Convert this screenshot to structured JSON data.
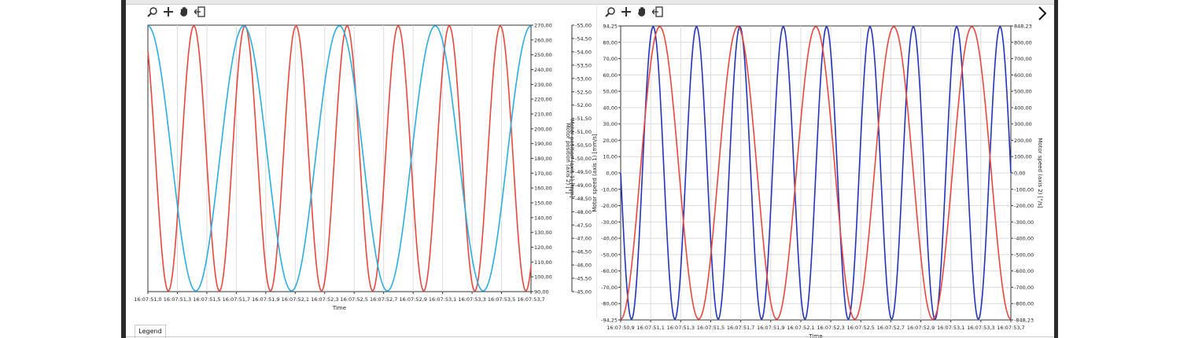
{
  "toolbar": {
    "icons": [
      "zoom-icon",
      "add-icon",
      "pan-hand-icon",
      "exit-icon"
    ]
  },
  "colors": {
    "red": "#e8473e",
    "cyan": "#2aaee0",
    "blue": "#2233bb",
    "grid": "#dcdcdc"
  },
  "legend": {
    "tab_label": "Legend"
  },
  "chart_data": [
    {
      "type": "line",
      "xlabel": "Time",
      "x_ticks": [
        "16:07:51,0",
        "16:07:51,3",
        "16:07:51,5",
        "16:07:51,7",
        "16:07:51,9",
        "16:07:52,1",
        "16:07:52,3",
        "16:07:52,5",
        "16:07:52,7",
        "16:07:52,9",
        "16:07:53,1",
        "16:07:53,3",
        "16:07:53,5",
        "16:07:53,7"
      ],
      "y_axis_right1": {
        "label": "Motor position (axis 2) [°]",
        "ticks": [
          "270,00",
          "260,00",
          "250,00",
          "240,00",
          "230,00",
          "220,00",
          "210,00",
          "200,00",
          "190,00",
          "180,00",
          "170,00",
          "160,00",
          "150,00",
          "140,00",
          "130,00",
          "120,00",
          "110,00",
          "100,00",
          "90,00"
        ],
        "ylim": [
          90,
          270
        ]
      },
      "y_axis_right2": {
        "label": "Motor position (axis 1) [mm]",
        "ticks": [
          "-55,00",
          "-54,50",
          "-54,00",
          "-53,50",
          "-53,00",
          "-52,50",
          "-52,00",
          "-51,50",
          "-51,00",
          "-50,50",
          "-50,00",
          "-49,50",
          "-49,00",
          "-48,50",
          "-48,00",
          "-47,50",
          "-47,00",
          "-46,50",
          "-46,00",
          "-45,50",
          "-45,00"
        ],
        "ylim": [
          -55,
          -45
        ]
      },
      "series": [
        {
          "color": "red",
          "kind": "sine",
          "cycles": 7.5,
          "phase": 0.1
        },
        {
          "color": "cyan",
          "kind": "sine",
          "cycles": 4.0,
          "phase": 0.0
        }
      ]
    },
    {
      "type": "line",
      "xlabel": "Time",
      "x_ticks": [
        "16:07:50,9",
        "16:07:51,1",
        "16:07:51,3",
        "16:07:51,5",
        "16:07:51,7",
        "16:07:51,9",
        "16:07:52,1",
        "16:07:52,3",
        "16:07:52,5",
        "16:07:52,7",
        "16:07:52,9",
        "16:07:53,1",
        "16:07:53,3",
        "16:07:53,7"
      ],
      "y_axis_left": {
        "label": "Motor speed (axis 1) [mm/s]",
        "ticks": [
          "94,25",
          "80,00",
          "70,00",
          "60,00",
          "50,00",
          "40,00",
          "30,00",
          "20,00",
          "10,00",
          "0,00",
          "-10,00",
          "-20,00",
          "-30,00",
          "-40,00",
          "-50,00",
          "-60,00",
          "-70,00",
          "-80,00",
          "-94,25"
        ],
        "ylim": [
          -94.25,
          94.25
        ]
      },
      "y_axis_right": {
        "label": "Motor speed (axis 2) [°/s]",
        "ticks": [
          "848,23",
          "800,00",
          "700,00",
          "600,00",
          "500,00",
          "400,00",
          "300,00",
          "200,00",
          "100,00",
          "0,00",
          "-100,00",
          "-200,00",
          "-300,00",
          "-400,00",
          "-500,00",
          "-600,00",
          "-700,00",
          "-800,00",
          "-848,23"
        ],
        "ylim": [
          -848.23,
          848.23
        ]
      },
      "series": [
        {
          "color": "blue",
          "kind": "sine",
          "cycles": 9.0,
          "phase": 0.25
        },
        {
          "color": "red",
          "kind": "sine",
          "cycles": 5.0,
          "phase": 0.5
        }
      ]
    }
  ]
}
